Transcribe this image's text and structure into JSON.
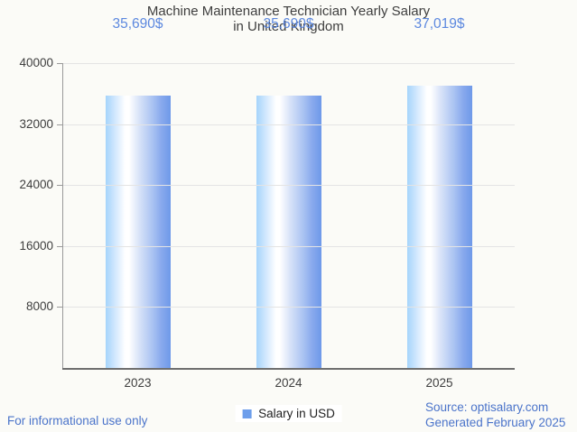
{
  "title": {
    "line1": "Machine Maintenance Technician Yearly Salary",
    "line2": "in United Kingdom"
  },
  "chart_data": {
    "type": "bar",
    "title": "Machine Maintenance Technician Yearly Salary in United Kingdom",
    "categories": [
      "2023",
      "2024",
      "2025"
    ],
    "series": [
      {
        "name": "Salary in USD",
        "values": [
          35690,
          35690,
          37019
        ]
      }
    ],
    "value_labels": [
      "35,690$",
      "35,690$",
      "37,019$"
    ],
    "xlabel": "",
    "ylabel": "",
    "ylim": [
      0,
      40000
    ],
    "yticks": [
      {
        "value": 40000,
        "label": "40000"
      },
      {
        "value": 32000,
        "label": "32000"
      },
      {
        "value": 24000,
        "label": "24000"
      },
      {
        "value": 16000,
        "label": "16000"
      },
      {
        "value": 8000,
        "label": "8000"
      }
    ],
    "grid": true,
    "legend_position": "bottom"
  },
  "legend": {
    "label": "Salary in USD",
    "swatch_color": "#6d9eeb"
  },
  "footer": {
    "left": "For informational use only",
    "source": "Source: optisalary.com",
    "generated": "Generated February 2025"
  },
  "colors": {
    "background": "#fbfbf7",
    "text": "#3e3e3e",
    "value_label": "#5c88df",
    "footer_text": "#4b74ca",
    "gridline": "#e4e4e4",
    "axis": "#6e6e6e",
    "bar_gradient_left": "#a5d4fb",
    "bar_gradient_mid": "#ffffff",
    "bar_gradient_right": "#6e99e9"
  }
}
